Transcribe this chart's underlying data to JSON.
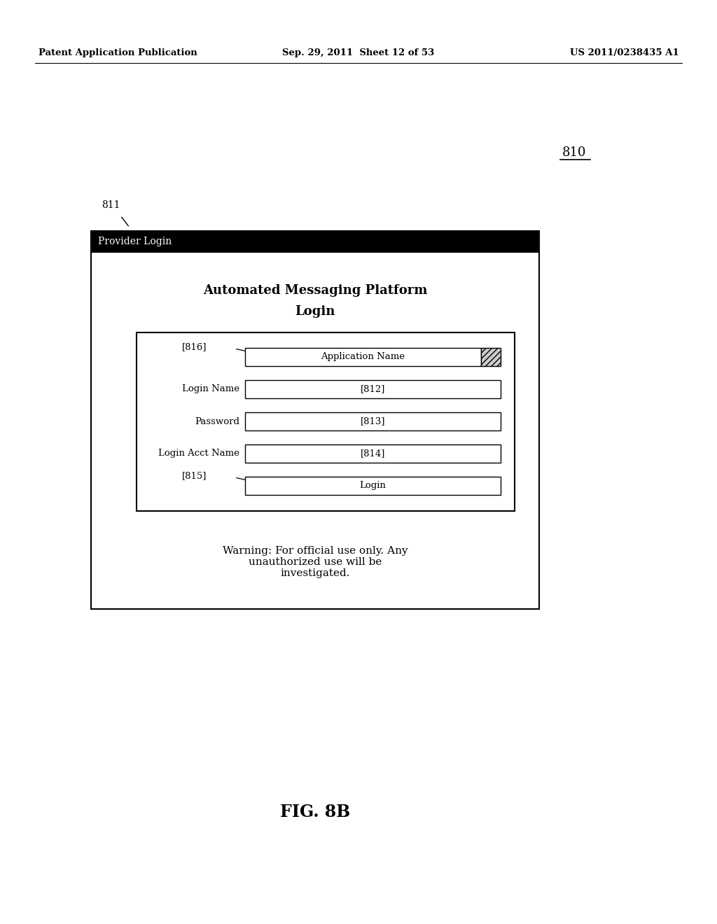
{
  "background_color": "#ffffff",
  "header_text_left": "Patent Application Publication",
  "header_text_mid": "Sep. 29, 2011  Sheet 12 of 53",
  "header_text_right": "US 2011/0238435 A1",
  "fig_label": "FIG. 8B",
  "diagram_ref": "810",
  "window_ref": "811",
  "window_title": "Provider Login",
  "window_title_bg": "#000000",
  "window_title_color": "#ffffff",
  "dialog_title_line1": "Automated Messaging Platform",
  "dialog_title_line2": "Login",
  "field_816_label": "[816]",
  "field_app_name_label": "Application Name",
  "field_login_name_label": "Login Name",
  "field_login_name_ref": "[812]",
  "field_password_label": "Password",
  "field_password_ref": "[813]",
  "field_acct_label": "Login Acct Name",
  "field_acct_ref": "[814]",
  "login_btn_ref": "[815]",
  "login_btn_text": "Login",
  "warning_text": "Warning: For official use only. Any\nunauthorized use will be\ninvestigated."
}
